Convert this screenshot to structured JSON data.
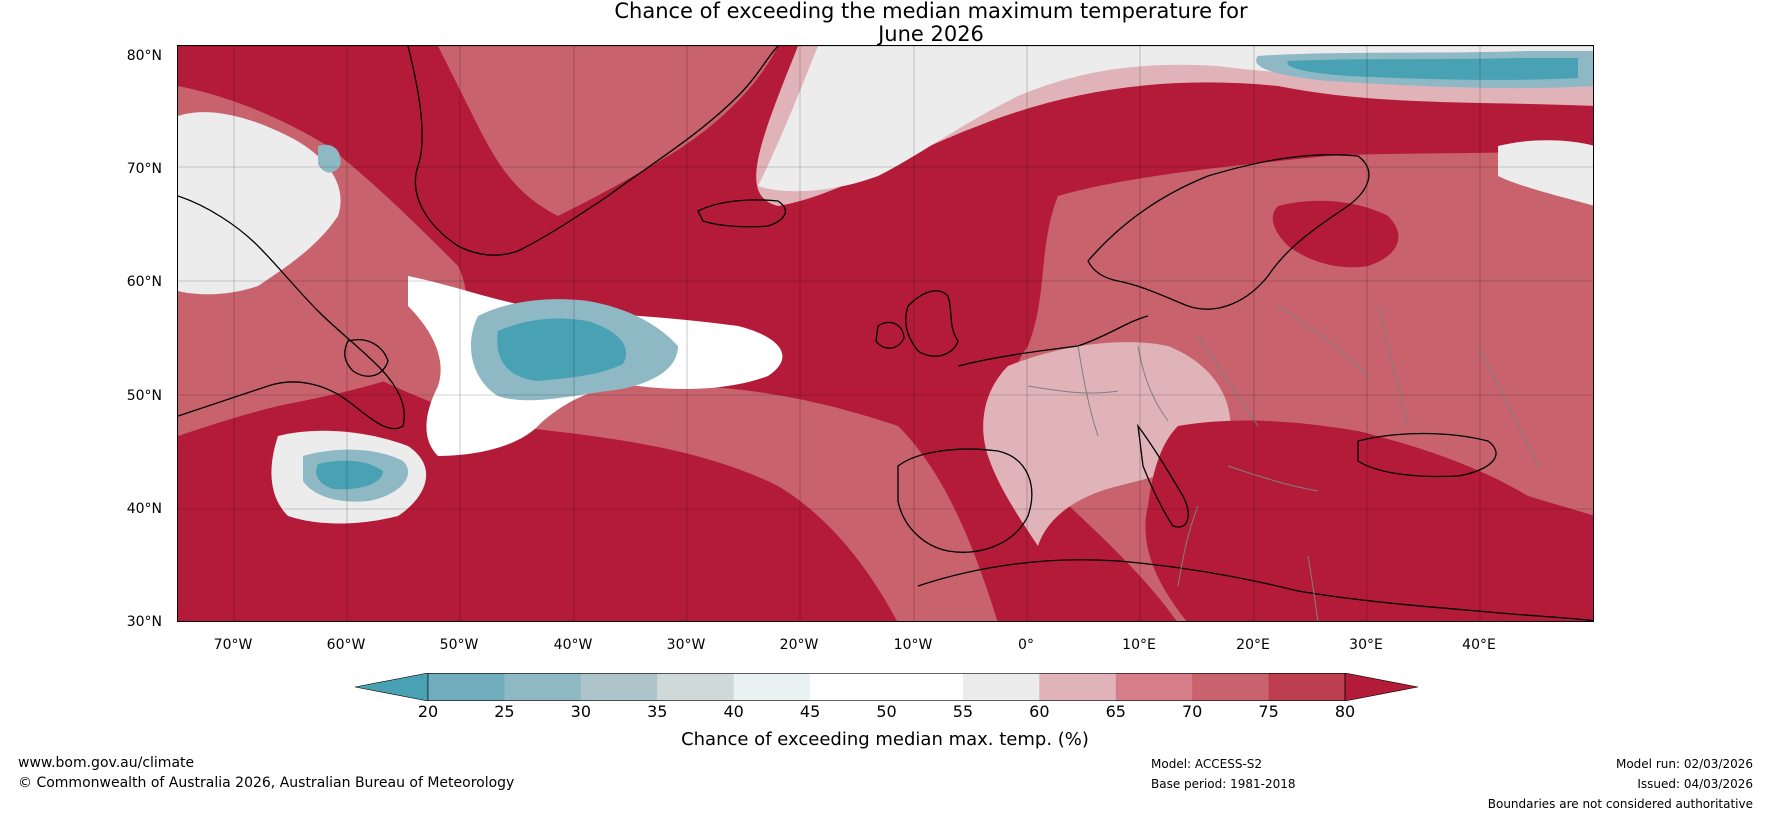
{
  "title": {
    "line1": "Chance of exceeding the median maximum temperature for",
    "line2": "June 2026"
  },
  "map": {
    "lat_labels": [
      "80°N",
      "70°N",
      "60°N",
      "50°N",
      "40°N",
      "30°N"
    ],
    "lon_labels": [
      "70°W",
      "60°W",
      "50°W",
      "40°W",
      "30°W",
      "20°W",
      "10°W",
      "0°",
      "10°E",
      "20°E",
      "30°E",
      "40°E"
    ],
    "colors": {
      "background": "#b31b38",
      "land_border": "#000000",
      "country_border": "#7f7f7f"
    }
  },
  "colorbar": {
    "ticks": [
      "20",
      "25",
      "30",
      "35",
      "40",
      "45",
      "50",
      "55",
      "60",
      "65",
      "70",
      "75",
      "80"
    ],
    "colors": [
      "#49a2b4",
      "#70adbd",
      "#8eb8c4",
      "#aec4cb",
      "#d0d9d9",
      "#eaf1f1",
      "#ffffff",
      "#ffffff",
      "#ececec",
      "#e0b3b9",
      "#d67f8b",
      "#c8636e",
      "#bd3f4f",
      "#b31b38"
    ],
    "label": "Chance of exceeding median max. temp. (%)"
  },
  "footer": {
    "website": "www.bom.gov.au/climate",
    "copyright": "© Commonwealth of Australia 2026, Australian Bureau of Meteorology",
    "model": "Model: ACCESS-S2",
    "base_period": "Base period: 1981-2018",
    "model_run": "Model run: 02/03/2026",
    "issued": "Issued: 04/03/2026",
    "disclaimer": "Boundaries are not considered authoritative"
  }
}
